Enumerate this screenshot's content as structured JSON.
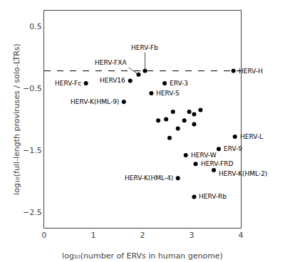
{
  "chart_data": {
    "type": "scatter",
    "x": [
      0.85,
      1.75,
      1.92,
      2.05,
      1.62,
      2.18,
      2.45,
      3.85,
      3.88,
      3.55,
      2.88,
      3.08,
      2.72,
      3.45,
      3.05,
      2.32,
      2.48,
      2.62,
      2.72,
      2.85,
      2.95,
      3.05,
      3.18,
      3.05,
      2.55
    ],
    "y": [
      -0.42,
      -0.38,
      -0.28,
      -0.22,
      -0.72,
      -0.58,
      -0.42,
      -0.22,
      -1.28,
      -1.48,
      -1.58,
      -1.72,
      -1.95,
      -1.82,
      -2.25,
      -1.02,
      -1.0,
      -0.88,
      -1.15,
      -1.02,
      -0.88,
      -0.92,
      -0.85,
      -1.08,
      -1.3
    ],
    "labels": [
      "HERV-Fc",
      "HERV16",
      "HERV-FXA",
      "HERV-Fb",
      "HERV-K(HML-9)",
      "HERV-S",
      "ERV-3",
      "HERV-H",
      "HERV-L",
      "ERV-9",
      "HERV-W",
      "HERV-FRD",
      "HERV-K(HML-4)",
      "HERV-K(HML-2)",
      "HERV-Rb",
      null,
      null,
      null,
      null,
      null,
      null,
      null,
      null,
      null,
      null
    ],
    "color": "black",
    "marker": "circle",
    "reference_line": {
      "y": -0.22,
      "line_style": "dashed",
      "color": "black"
    },
    "xlabel": "log₁₀(number of ERVs in human genome)",
    "ylabel": "log₁₀(full-length proviruses / solo-LTRs)",
    "xlim": [
      0,
      4
    ],
    "ylim": [
      -2.75,
      0.75
    ],
    "xticks": [
      0,
      1,
      2,
      3,
      4
    ],
    "yticks": [
      -2.5,
      -1.5,
      -0.5,
      0.5
    ],
    "grid": false
  }
}
